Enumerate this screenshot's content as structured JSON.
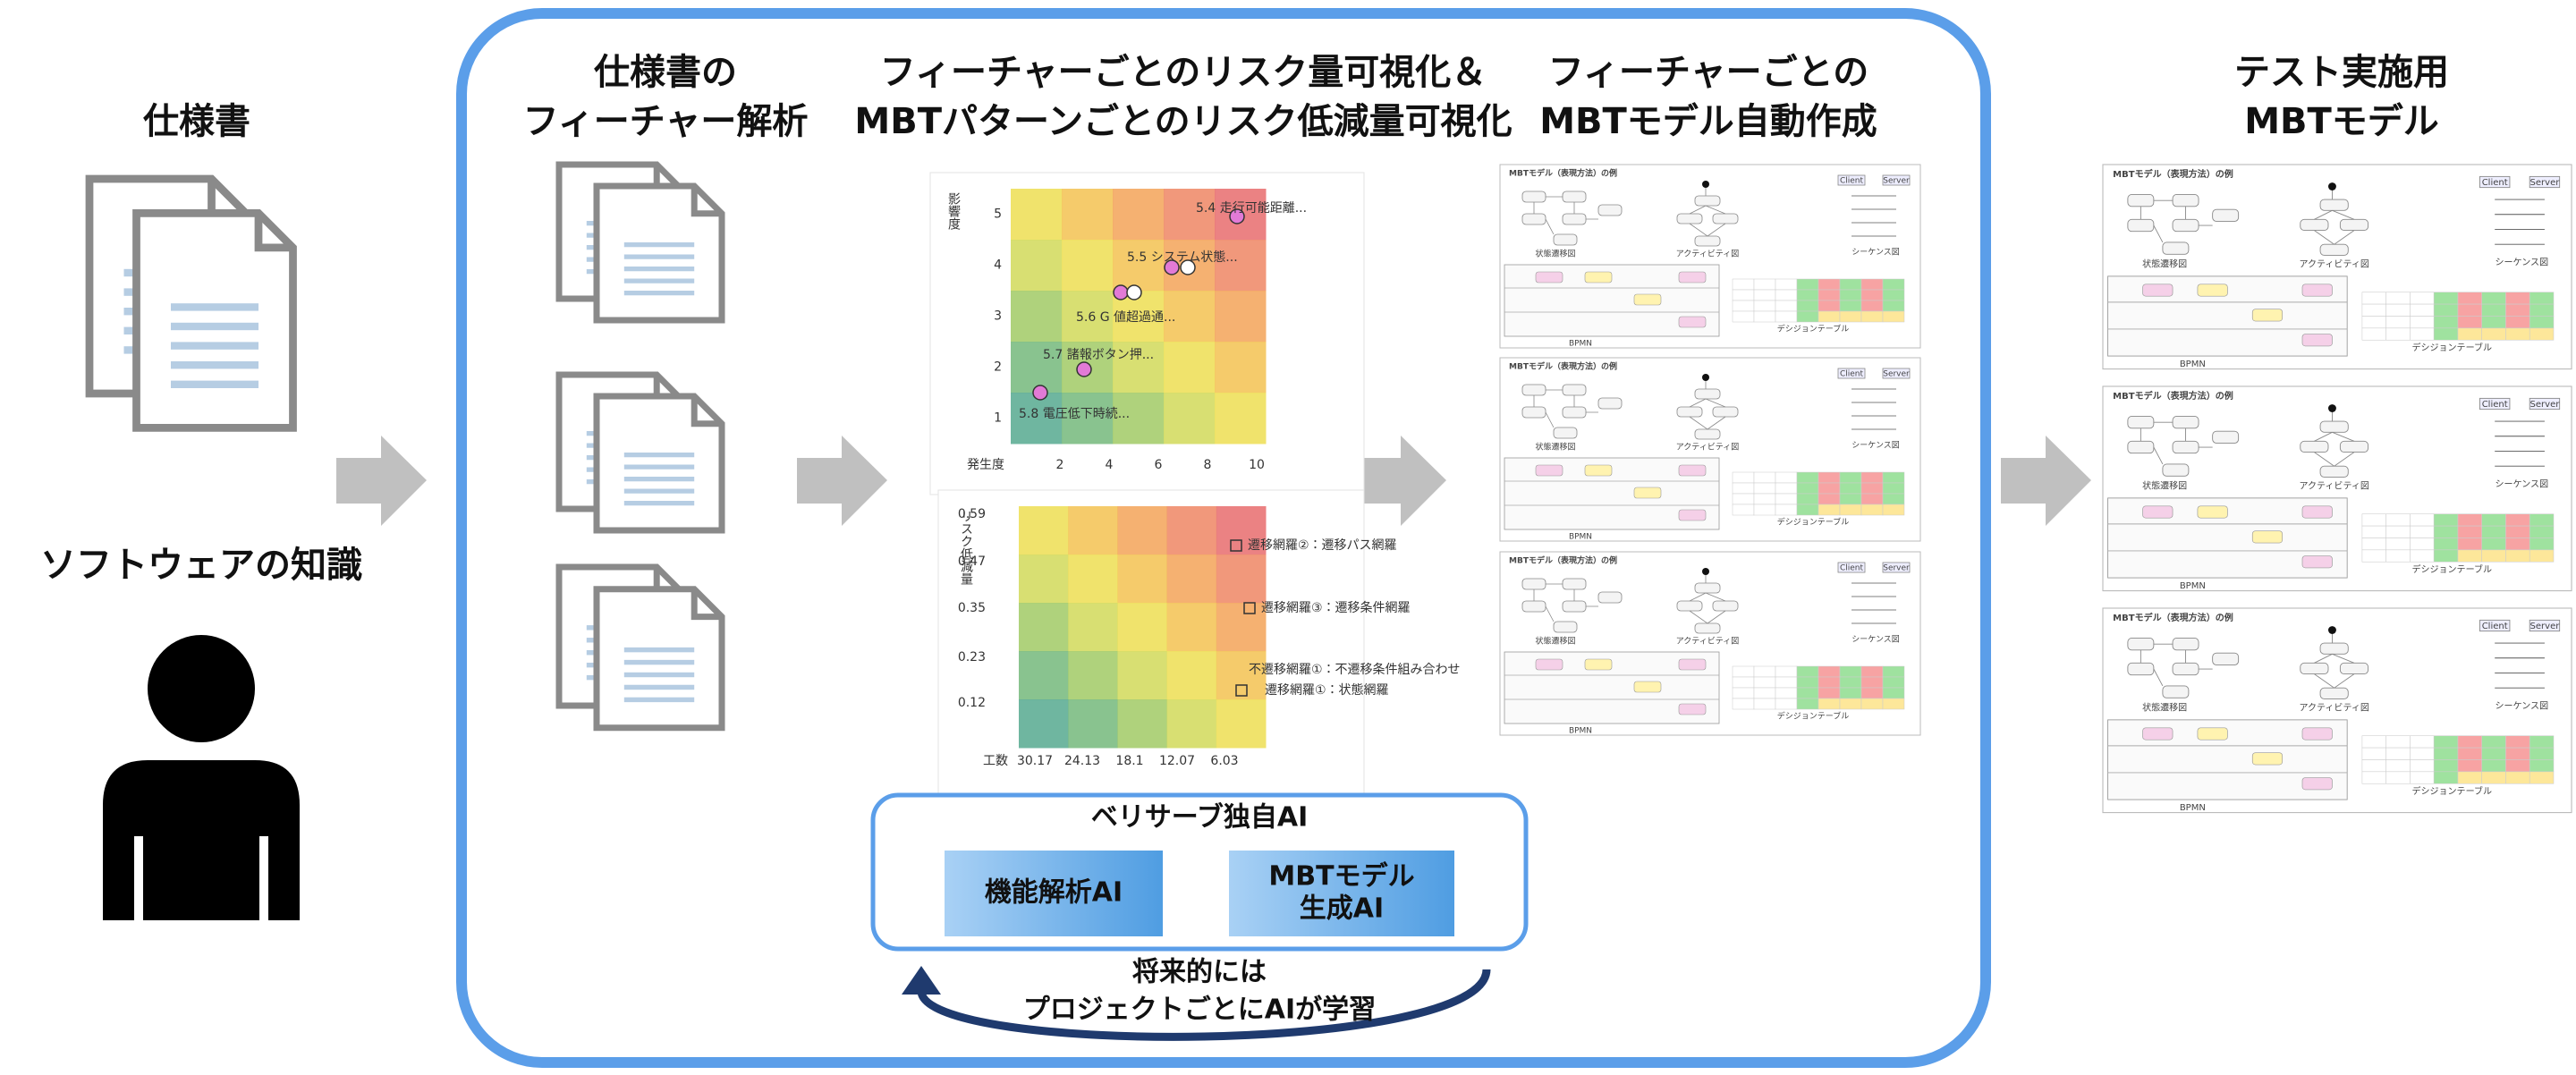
{
  "input": {
    "spec_label": "仕様書",
    "knowledge_label": "ソフトウェアの知識"
  },
  "steps": [
    {
      "title": [
        "仕様書の",
        "フィーチャー解析"
      ]
    },
    {
      "title": [
        "フィーチャーごとのリスク量可視化＆",
        "MBTパターンごとのリスク低減量可視化"
      ]
    },
    {
      "title": [
        "フィーチャーごとの",
        "MBTモデル自動作成"
      ]
    },
    {
      "title": [
        "テスト実施用",
        "MBTモデル"
      ]
    }
  ],
  "risk_map": {
    "y_label": "影響度",
    "x_label": "発生度",
    "y_ticks": [
      5,
      4,
      3,
      2,
      1
    ],
    "x_ticks": [
      2,
      4,
      6,
      8,
      10
    ],
    "features": [
      "5.4 走行可能距離...",
      "5.5 システム状態...",
      "5.6 G 値超過通...",
      "5.7 諸報ボタン押...",
      "5.8 電圧低下時続..."
    ]
  },
  "reduction_map": {
    "y_label": "リスク低減量",
    "x_label": "工数",
    "y_ticks": [
      0.59,
      0.47,
      0.35,
      0.23,
      0.12
    ],
    "x_ticks": [
      30.17,
      24.13,
      18.1,
      12.07,
      6.03
    ],
    "patterns": [
      "遷移網羅②：遷移パス網羅",
      "遷移網羅③：遷移条件網羅",
      "不遷移網羅①：不遷移条件組み合わせ",
      "遷移網羅①：状態網羅"
    ]
  },
  "ai": {
    "title": "ベリサーブ独自AI",
    "modules": [
      [
        "機能解析AI"
      ],
      [
        "MBTモデル",
        "生成AI"
      ]
    ],
    "learning_note": [
      "将来的には",
      "プロジェクトごとにAIが学習"
    ]
  },
  "model_example": {
    "title": "MBTモデル（表現方法）の例",
    "state": "状態遷移図",
    "activity": "アクティビティ図",
    "sequence": "シーケンス図",
    "bpmn": "BPMN",
    "decision": "デシジョンテーブル",
    "client": "Client",
    "server": "Server"
  }
}
